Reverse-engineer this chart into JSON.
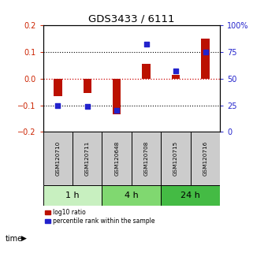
{
  "title": "GDS3433 / 6111",
  "samples": [
    "GSM120710",
    "GSM120711",
    "GSM120648",
    "GSM120708",
    "GSM120715",
    "GSM120716"
  ],
  "log10_ratio": [
    -0.065,
    -0.055,
    -0.135,
    0.055,
    0.015,
    0.15
  ],
  "percentile_rank": [
    25,
    24,
    20,
    82,
    57,
    75
  ],
  "time_groups": [
    {
      "label": "1 h",
      "indices": [
        0,
        1
      ],
      "color": "#c8f0c0"
    },
    {
      "label": "4 h",
      "indices": [
        2,
        3
      ],
      "color": "#80d870"
    },
    {
      "label": "24 h",
      "indices": [
        4,
        5
      ],
      "color": "#44bb44"
    }
  ],
  "ylim_left": [
    -0.2,
    0.2
  ],
  "ylim_right": [
    0,
    100
  ],
  "yticks_left": [
    -0.2,
    -0.1,
    0.0,
    0.1,
    0.2
  ],
  "yticks_right": [
    0,
    25,
    50,
    75,
    100
  ],
  "bar_color_red": "#bb1100",
  "bar_color_blue": "#2222cc",
  "dotted_line_color_black": "#000000",
  "dotted_line_color_red": "#cc0000",
  "background_color": "#ffffff",
  "sample_box_color": "#cccccc",
  "legend_red_label": "log10 ratio",
  "legend_blue_label": "percentile rank within the sample",
  "time_label": "time"
}
